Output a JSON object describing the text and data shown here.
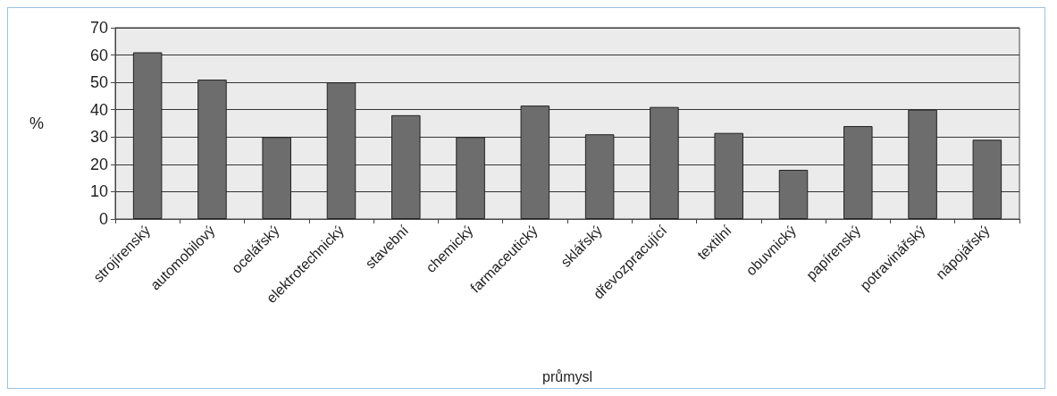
{
  "chart_data": {
    "type": "bar",
    "xlabel": "průmysl",
    "ylabel": "%",
    "categories": [
      "strojírenský",
      "automobilový",
      "ocelářský",
      "elektrotechnický",
      "stavební",
      "chemický",
      "farmaceutický",
      "sklářský",
      "dřevozpracující",
      "textilní",
      "obuvnický",
      "papírenský",
      "potravinářský",
      "nápojářský"
    ],
    "values": [
      61,
      51,
      30,
      50,
      38,
      30,
      41.5,
      31,
      41,
      31.5,
      18,
      34,
      40,
      29
    ],
    "color": "#6d6d6d",
    "ylim": [
      0,
      70
    ],
    "yticks": [
      0,
      10,
      20,
      30,
      40,
      50,
      60,
      70
    ],
    "grid": "y"
  }
}
